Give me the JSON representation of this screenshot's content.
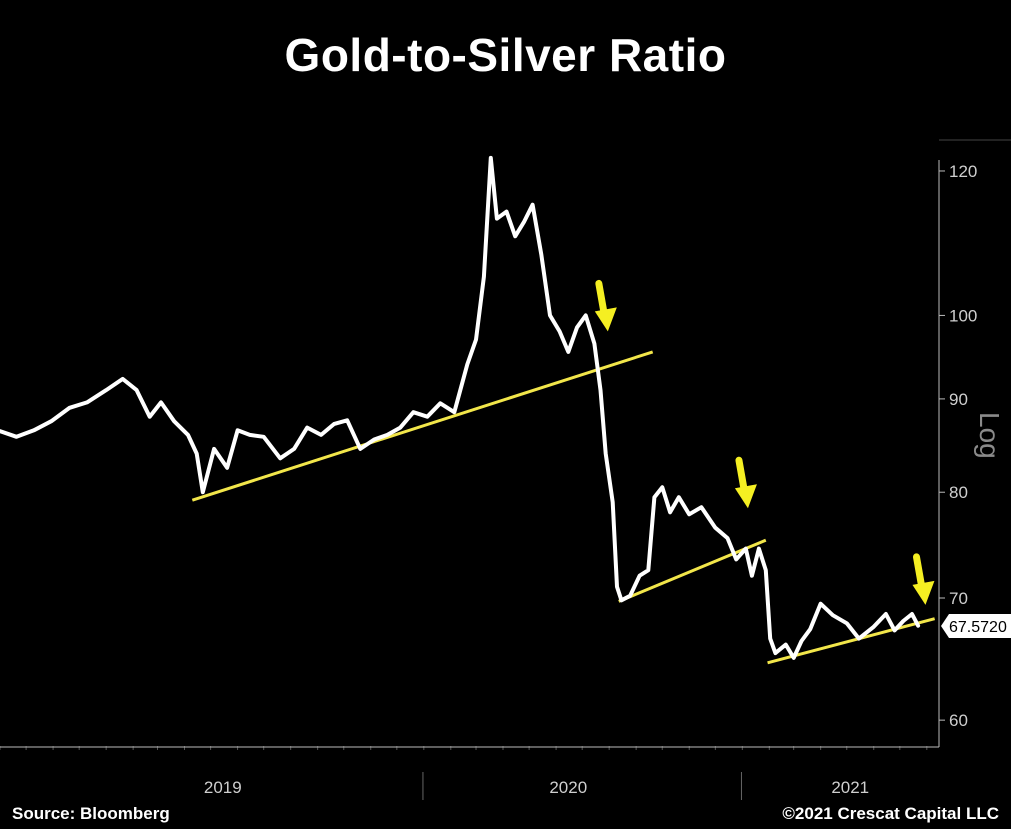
{
  "title": "Gold-to-Silver Ratio",
  "source": "Source: Bloomberg",
  "copyright": "©2021 Crescat Capital LLC",
  "scale_label": "Log",
  "last_value_label": "67.5720",
  "colors": {
    "series": "#ffffff",
    "trendline": "#f2e64a",
    "arrow": "#f5ef22",
    "background": "#000000"
  },
  "chart_data": {
    "type": "line",
    "title": "Gold-to-Silver Ratio",
    "yscale": "log",
    "ylim": [
      58,
      124
    ],
    "yticks": [
      60,
      70,
      80,
      90,
      100,
      120
    ],
    "xlim": [
      "2018-09-01",
      "2021-08-15"
    ],
    "xlabels": [
      "2019",
      "2020",
      "2021"
    ],
    "series": [
      {
        "values": [
          [
            "2018-09-01",
            86.4
          ],
          [
            "2018-09-20",
            85.8
          ],
          [
            "2018-10-10",
            86.5
          ],
          [
            "2018-10-30",
            87.5
          ],
          [
            "2018-11-20",
            89.0
          ],
          [
            "2018-12-10",
            89.6
          ],
          [
            "2019-01-01",
            91.0
          ],
          [
            "2019-01-20",
            92.3
          ],
          [
            "2019-02-05",
            91.0
          ],
          [
            "2019-02-20",
            88.0
          ],
          [
            "2019-03-05",
            89.6
          ],
          [
            "2019-03-20",
            87.5
          ],
          [
            "2019-04-05",
            86.0
          ],
          [
            "2019-04-15",
            84.0
          ],
          [
            "2019-04-22",
            80.0
          ],
          [
            "2019-05-05",
            84.5
          ],
          [
            "2019-05-20",
            82.5
          ],
          [
            "2019-06-01",
            86.5
          ],
          [
            "2019-06-15",
            86.0
          ],
          [
            "2019-07-01",
            85.8
          ],
          [
            "2019-07-20",
            83.5
          ],
          [
            "2019-08-05",
            84.5
          ],
          [
            "2019-08-20",
            86.8
          ],
          [
            "2019-09-05",
            86.0
          ],
          [
            "2019-09-20",
            87.2
          ],
          [
            "2019-10-05",
            87.6
          ],
          [
            "2019-10-20",
            84.5
          ],
          [
            "2019-11-05",
            85.5
          ],
          [
            "2019-11-20",
            86.0
          ],
          [
            "2019-12-05",
            86.8
          ],
          [
            "2019-12-20",
            88.5
          ],
          [
            "2020-01-05",
            88.0
          ],
          [
            "2020-01-20",
            89.5
          ],
          [
            "2020-02-05",
            88.5
          ],
          [
            "2020-02-20",
            94.0
          ],
          [
            "2020-03-01",
            97.0
          ],
          [
            "2020-03-10",
            105.0
          ],
          [
            "2020-03-18",
            122.0
          ],
          [
            "2020-03-25",
            113.0
          ],
          [
            "2020-04-05",
            114.0
          ],
          [
            "2020-04-15",
            110.5
          ],
          [
            "2020-04-25",
            112.5
          ],
          [
            "2020-05-05",
            115.0
          ],
          [
            "2020-05-15",
            108.0
          ],
          [
            "2020-05-25",
            100.0
          ],
          [
            "2020-06-05",
            98.0
          ],
          [
            "2020-06-15",
            95.5
          ],
          [
            "2020-06-25",
            98.5
          ],
          [
            "2020-07-05",
            100.0
          ],
          [
            "2020-07-15",
            96.5
          ],
          [
            "2020-07-22",
            91.0
          ],
          [
            "2020-07-28",
            84.0
          ],
          [
            "2020-08-05",
            79.0
          ],
          [
            "2020-08-10",
            71.0
          ],
          [
            "2020-08-15",
            69.8
          ],
          [
            "2020-08-25",
            70.2
          ],
          [
            "2020-09-05",
            72.0
          ],
          [
            "2020-09-15",
            72.5
          ],
          [
            "2020-09-22",
            79.5
          ],
          [
            "2020-10-01",
            80.5
          ],
          [
            "2020-10-10",
            78.0
          ],
          [
            "2020-10-20",
            79.5
          ],
          [
            "2020-11-01",
            77.8
          ],
          [
            "2020-11-15",
            78.5
          ],
          [
            "2020-12-01",
            76.5
          ],
          [
            "2020-12-15",
            75.5
          ],
          [
            "2020-12-25",
            73.5
          ],
          [
            "2021-01-05",
            74.5
          ],
          [
            "2021-01-12",
            72.0
          ],
          [
            "2021-01-20",
            74.5
          ],
          [
            "2021-01-28",
            72.5
          ],
          [
            "2021-02-02",
            66.5
          ],
          [
            "2021-02-08",
            65.3
          ],
          [
            "2021-02-20",
            66.0
          ],
          [
            "2021-03-01",
            64.9
          ],
          [
            "2021-03-10",
            66.3
          ],
          [
            "2021-03-20",
            67.3
          ],
          [
            "2021-04-01",
            69.5
          ],
          [
            "2021-04-15",
            68.5
          ],
          [
            "2021-05-01",
            67.8
          ],
          [
            "2021-05-15",
            66.5
          ],
          [
            "2021-06-01",
            67.5
          ],
          [
            "2021-06-15",
            68.6
          ],
          [
            "2021-06-25",
            67.2
          ],
          [
            "2021-07-05",
            68.0
          ],
          [
            "2021-07-15",
            68.6
          ],
          [
            "2021-07-22",
            67.6
          ]
        ]
      }
    ],
    "trendlines": [
      {
        "from": [
          "2019-04-10",
          79.2
        ],
        "to": [
          "2020-09-20",
          95.5
        ]
      },
      {
        "from": [
          "2020-08-12",
          69.7
        ],
        "to": [
          "2021-01-28",
          75.3
        ]
      },
      {
        "from": [
          "2021-01-30",
          64.5
        ],
        "to": [
          "2021-08-10",
          68.2
        ]
      }
    ],
    "annotations": [
      {
        "type": "arrow-down",
        "at": [
          "2020-07-27",
          98.0
        ]
      },
      {
        "type": "arrow-down",
        "at": [
          "2021-01-04",
          78.4
        ]
      },
      {
        "type": "arrow-down",
        "at": [
          "2021-07-27",
          69.4
        ]
      }
    ],
    "last_value": 67.572
  }
}
